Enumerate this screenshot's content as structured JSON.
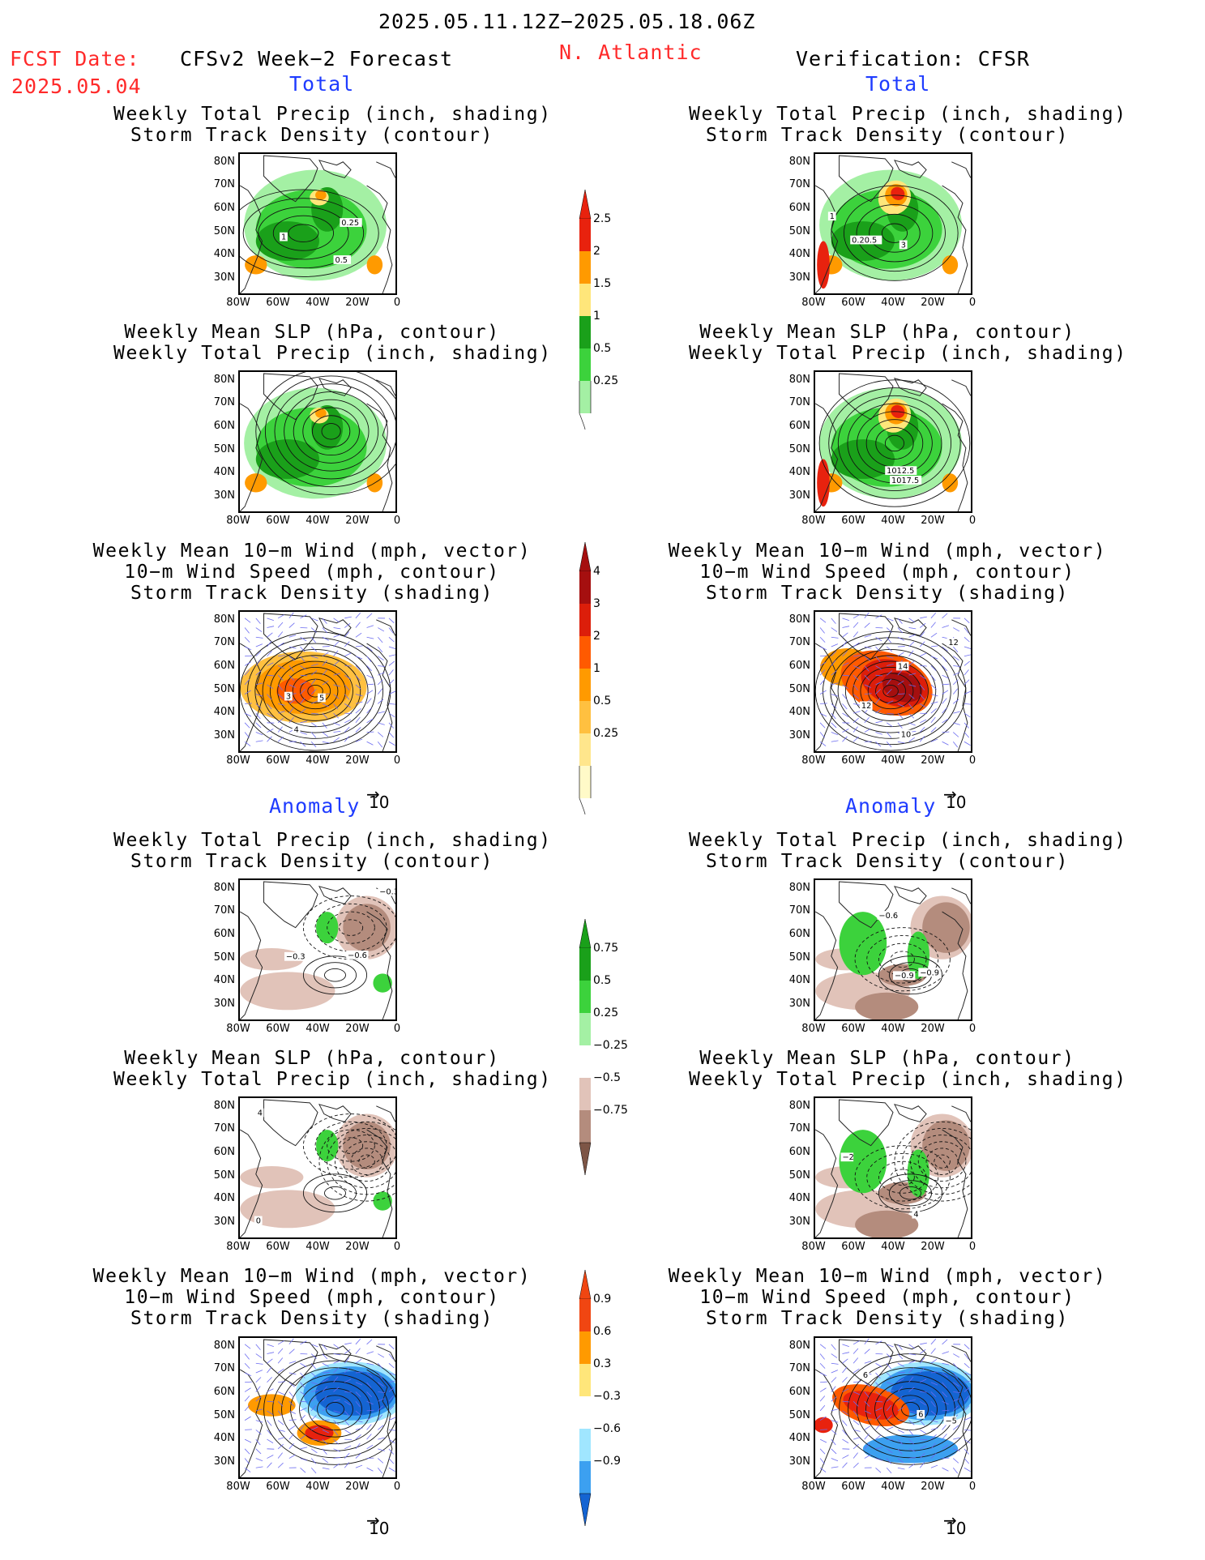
{
  "header": {
    "period": "2025.05.11.12Z−2025.05.18.06Z",
    "fcst_label": "FCST Date:",
    "fcst_date": "2025.05.04",
    "model": "CFSv2 Week−2 Forecast",
    "region": "N. Atlantic",
    "verification": "Verification: CFSR"
  },
  "sections": {
    "total": "Total",
    "anomaly": "Anomaly"
  },
  "titles": {
    "precip_storm": [
      "Weekly Total Precip (inch, shading)",
      "Storm Track Density (contour)"
    ],
    "slp_precip": [
      "Weekly Mean SLP (hPa, contour)",
      "Weekly Total Precip (inch, shading)"
    ],
    "wind_storm": [
      "Weekly Mean 10−m Wind (mph, vector)",
      "10−m Wind Speed (mph, contour)",
      "Storm Track Density (shading)"
    ]
  },
  "axes": {
    "lat_labels": [
      "80N",
      "70N",
      "60N",
      "50N",
      "40N",
      "30N"
    ],
    "lon_labels": [
      "80W",
      "60W",
      "40W",
      "20W",
      "0"
    ]
  },
  "vector_ref": "10",
  "colorbars": {
    "precip_total": {
      "labels": [
        "2.5",
        "2",
        "1.5",
        "1",
        "0.5",
        "0.25"
      ],
      "colors": [
        "#e8220e",
        "#ff9a00",
        "#ffe67a",
        "#1aa01a",
        "#3cd23c",
        "#a4f0a4"
      ]
    },
    "storm_total": {
      "labels": [
        "4",
        "3",
        "2",
        "1",
        "0.5",
        "0.25"
      ],
      "colors": [
        "#a50f0f",
        "#dc1e0a",
        "#ff5a00",
        "#ff9a00",
        "#ffc040",
        "#ffe68c",
        "#fffac8"
      ]
    },
    "precip_anom": {
      "labels": [
        "0.75",
        "0.5",
        "0.25",
        "−0.25",
        "−0.5",
        "−0.75"
      ],
      "colors": [
        "#1aa01a",
        "#3cd23c",
        "#a4f0a4",
        "#ffffff",
        "#e1c3b9",
        "#b48c7d",
        "#7d5546"
      ]
    },
    "storm_anom": {
      "labels": [
        "0.9",
        "0.6",
        "0.3",
        "−0.3",
        "−0.6",
        "−0.9"
      ],
      "colors": [
        "#f04612",
        "#ff9a00",
        "#ffe67a",
        "#ffffff",
        "#a0e6ff",
        "#3ca0f0",
        "#1464d2"
      ]
    }
  },
  "contour_labels": {
    "p1_left": [
      "1",
      "0.25",
      "0.5"
    ],
    "p1_right": [
      "1",
      "0.20.5",
      "3"
    ],
    "p2_right": [
      "1012.5",
      "1017.5"
    ],
    "p3_left": [
      "3",
      "5",
      "4"
    ],
    "p3_right": [
      "14",
      "12",
      "10",
      "12"
    ],
    "p4_left": [
      "−0.3",
      "−0.3",
      "−0.6"
    ],
    "p4_right": [
      "−0.6",
      "−0.9",
      "−0.9"
    ],
    "p5_left": [
      "4",
      "0"
    ],
    "p5_right": [
      "−2",
      "4"
    ],
    "p6_right": [
      "6",
      "6",
      "−5"
    ]
  }
}
